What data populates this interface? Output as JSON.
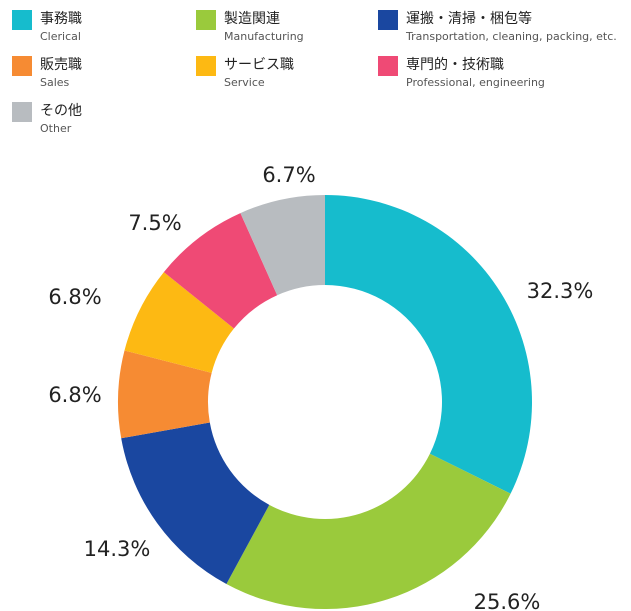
{
  "chart_data": {
    "type": "pie",
    "categories": [
      "事務職",
      "製造関連",
      "運搬・清掃・梱包等",
      "販売職",
      "サービス職",
      "専門的・技術職",
      "その他"
    ],
    "category_subtitles": [
      "Clerical",
      "Manufacturing",
      "Transportation, cleaning, packing, etc.",
      "Sales",
      "Service",
      "Professional, engineering",
      "Other"
    ],
    "values": [
      32.3,
      25.6,
      14.3,
      6.8,
      6.8,
      7.5,
      6.7
    ],
    "value_labels": [
      "32.3%",
      "25.6%",
      "14.3%",
      "6.8%",
      "6.8%",
      "7.5%",
      "6.7%"
    ],
    "colors": [
      "#16bccd",
      "#9aca3c",
      "#1a47a0",
      "#f68b33",
      "#fdb913",
      "#ef4a75",
      "#b8bcc0"
    ]
  }
}
